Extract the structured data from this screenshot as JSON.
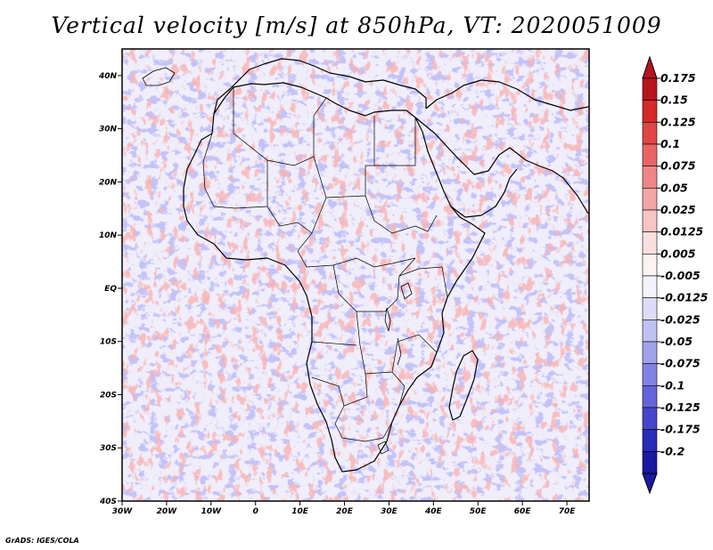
{
  "title": "Vertical velocity [m/s] at 850hPa, VT: 2020051009",
  "credit": "GrADS: IGES/COLA",
  "chart_data": {
    "type": "heatmap",
    "variable": "Vertical velocity",
    "units": "m/s",
    "level": "850hPa",
    "valid_time": "2020051009",
    "lon_range": [
      -30,
      75
    ],
    "lat_range": [
      -40,
      45
    ],
    "x_ticks": [
      "30W",
      "20W",
      "10W",
      "0",
      "10E",
      "20E",
      "30E",
      "40E",
      "50E",
      "60E",
      "70E"
    ],
    "x_tick_values": [
      -30,
      -20,
      -10,
      0,
      10,
      20,
      30,
      40,
      50,
      60,
      70
    ],
    "y_ticks": [
      "40N",
      "30N",
      "20N",
      "10N",
      "EQ",
      "10S",
      "20S",
      "30S",
      "40S"
    ],
    "y_tick_values": [
      40,
      30,
      20,
      10,
      0,
      -10,
      -20,
      -30,
      -40
    ],
    "colorbar": {
      "levels": [
        "0.175",
        "0.15",
        "0.125",
        "0.1",
        "0.075",
        "0.05",
        "0.025",
        "0.0125",
        "0.005",
        "-0.005",
        "-0.0125",
        "-0.025",
        "-0.05",
        "-0.075",
        "-0.1",
        "-0.125",
        "-0.175",
        "-0.2"
      ],
      "colors": [
        "#b8141e",
        "#d42a2a",
        "#e04646",
        "#e96565",
        "#ef8585",
        "#f4a5a5",
        "#f8c4c4",
        "#fbdfdf",
        "#fef3f3",
        "#f3f3fd",
        "#dcdcfa",
        "#c0c0f3",
        "#a2a2ec",
        "#8282e4",
        "#6464da",
        "#4646cc",
        "#2a2ab8",
        "#1a1aa0"
      ]
    }
  }
}
